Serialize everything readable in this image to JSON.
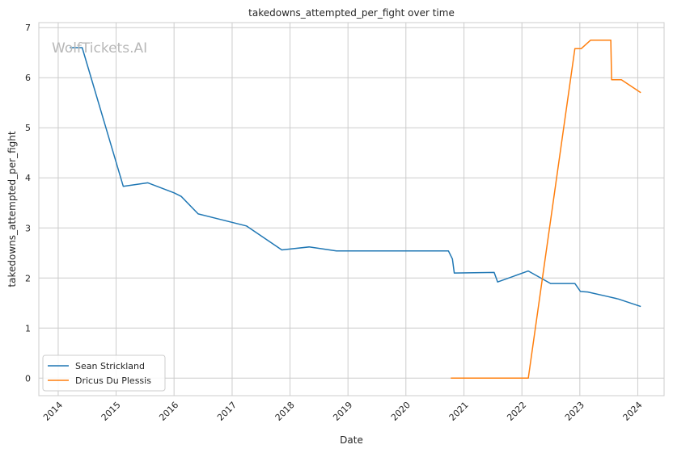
{
  "chart_data": {
    "type": "line",
    "title": "takedowns_attempted_per_fight over time",
    "xlabel": "Date",
    "ylabel": "takedowns_attempted_per_fight",
    "watermark": "WolfTickets.AI",
    "x_ticks": [
      "2014",
      "2015",
      "2016",
      "2017",
      "2018",
      "2019",
      "2020",
      "2021",
      "2022",
      "2023",
      "2024"
    ],
    "y_ticks": [
      "0",
      "1",
      "2",
      "3",
      "4",
      "5",
      "6",
      "7"
    ],
    "xlim": [
      "2013-09-01",
      "2024-06-15"
    ],
    "ylim": [
      -0.35,
      7.1
    ],
    "grid": true,
    "legend_position": "lower-left",
    "series": [
      {
        "name": "Sean Strickland",
        "color": "#1f77b4",
        "points": [
          [
            "2014-03-15",
            6.6
          ],
          [
            "2014-06-01",
            6.6
          ],
          [
            "2015-02-15",
            3.83
          ],
          [
            "2015-07-20",
            3.9
          ],
          [
            "2016-01-01",
            3.7
          ],
          [
            "2016-02-15",
            3.63
          ],
          [
            "2016-06-01",
            3.28
          ],
          [
            "2017-04-01",
            3.04
          ],
          [
            "2017-11-10",
            2.56
          ],
          [
            "2018-05-01",
            2.62
          ],
          [
            "2018-10-20",
            2.54
          ],
          [
            "2020-09-25",
            2.54
          ],
          [
            "2020-10-20",
            2.38
          ],
          [
            "2020-11-01",
            2.1
          ],
          [
            "2021-07-10",
            2.11
          ],
          [
            "2021-08-01",
            1.92
          ],
          [
            "2022-02-10",
            2.14
          ],
          [
            "2022-07-01",
            1.89
          ],
          [
            "2022-12-01",
            1.89
          ],
          [
            "2023-01-05",
            1.73
          ],
          [
            "2023-02-20",
            1.72
          ],
          [
            "2023-06-25",
            1.63
          ],
          [
            "2023-09-01",
            1.58
          ],
          [
            "2024-01-20",
            1.43
          ]
        ]
      },
      {
        "name": "Dricus Du Plessis",
        "color": "#ff7f0e",
        "points": [
          [
            "2020-10-10",
            0.0
          ],
          [
            "2022-02-10",
            0.0
          ],
          [
            "2022-12-01",
            6.58
          ],
          [
            "2023-01-10",
            6.58
          ],
          [
            "2023-03-10",
            6.75
          ],
          [
            "2023-07-15",
            6.75
          ],
          [
            "2023-07-20",
            5.96
          ],
          [
            "2023-09-20",
            5.96
          ],
          [
            "2024-01-20",
            5.7
          ]
        ]
      }
    ]
  }
}
